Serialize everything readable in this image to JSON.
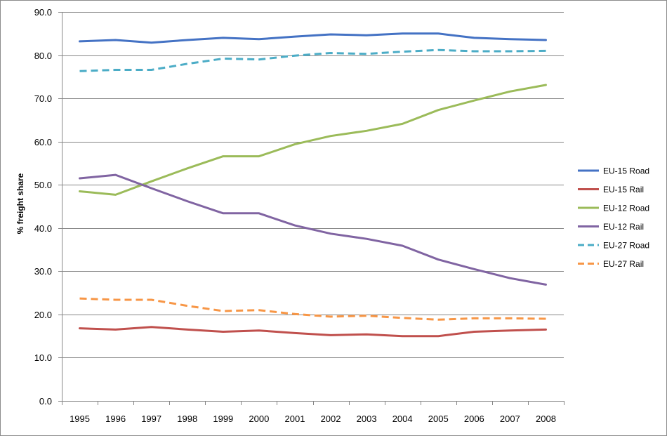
{
  "chart_data": {
    "type": "line",
    "title": "",
    "xlabel": "",
    "ylabel": "% freight share",
    "ylim": [
      0,
      90
    ],
    "ytick_step": 10,
    "ytick_decimals": 1,
    "grid": "horizontal",
    "legend_position": "right",
    "categories": [
      "1995",
      "1996",
      "1997",
      "1998",
      "1999",
      "2000",
      "2001",
      "2002",
      "2003",
      "2004",
      "2005",
      "2006",
      "2007",
      "2008"
    ],
    "series": [
      {
        "name": "EU-15 Road",
        "color": "#4472c4",
        "dash": "solid",
        "values": [
          83.2,
          83.5,
          82.9,
          83.5,
          84.0,
          83.7,
          84.3,
          84.8,
          84.6,
          85.0,
          85.0,
          84.0,
          83.7,
          83.5
        ]
      },
      {
        "name": "EU-15 Rail",
        "color": "#c0504d",
        "dash": "solid",
        "values": [
          16.8,
          16.5,
          17.1,
          16.5,
          16.0,
          16.3,
          15.7,
          15.2,
          15.4,
          15.0,
          15.0,
          16.0,
          16.3,
          16.5
        ]
      },
      {
        "name": "EU-12 Road",
        "color": "#9bbb59",
        "dash": "solid",
        "values": [
          48.5,
          47.7,
          50.8,
          53.8,
          56.6,
          56.6,
          59.4,
          61.3,
          62.5,
          64.1,
          67.3,
          69.5,
          71.6,
          73.1
        ]
      },
      {
        "name": "EU-12 Rail",
        "color": "#8064a2",
        "dash": "solid",
        "values": [
          51.5,
          52.3,
          49.2,
          46.2,
          43.4,
          43.4,
          40.6,
          38.7,
          37.5,
          35.9,
          32.7,
          30.5,
          28.4,
          26.9
        ]
      },
      {
        "name": "EU-27 Road",
        "color": "#4bacc6",
        "dash": "dashed",
        "values": [
          76.3,
          76.6,
          76.6,
          78.0,
          79.2,
          79.0,
          79.9,
          80.5,
          80.3,
          80.8,
          81.2,
          80.9,
          80.9,
          81.0
        ]
      },
      {
        "name": "EU-27 Rail",
        "color": "#f79646",
        "dash": "dashed",
        "values": [
          23.7,
          23.4,
          23.4,
          22.0,
          20.8,
          21.0,
          20.1,
          19.5,
          19.7,
          19.2,
          18.8,
          19.1,
          19.1,
          19.0
        ]
      }
    ]
  }
}
